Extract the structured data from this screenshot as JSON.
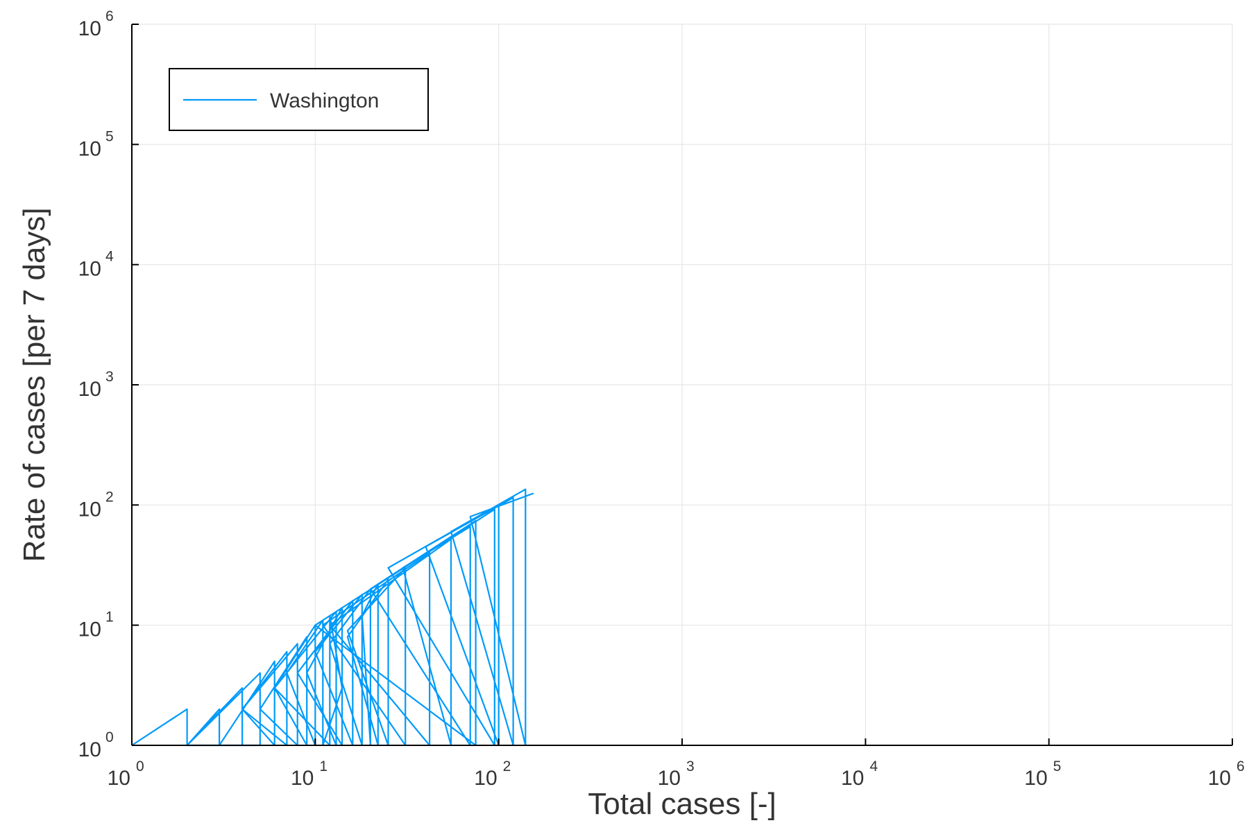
{
  "chart_data": {
    "type": "line",
    "xlabel": "Total cases [-]",
    "ylabel": "Rate of cases [per 7 days]",
    "xscale": "log10",
    "yscale": "log10",
    "xlim": [
      1,
      1000000
    ],
    "ylim": [
      1,
      1000000
    ],
    "grid": true,
    "legend_position": "top-left",
    "x_ticks": [
      {
        "base": "10",
        "exp": "0",
        "value": 1
      },
      {
        "base": "10",
        "exp": "1",
        "value": 10
      },
      {
        "base": "10",
        "exp": "2",
        "value": 100
      },
      {
        "base": "10",
        "exp": "3",
        "value": 1000
      },
      {
        "base": "10",
        "exp": "4",
        "value": 10000
      },
      {
        "base": "10",
        "exp": "5",
        "value": 100000
      },
      {
        "base": "10",
        "exp": "6",
        "value": 1000000
      }
    ],
    "y_ticks": [
      {
        "base": "10",
        "exp": "0",
        "value": 1
      },
      {
        "base": "10",
        "exp": "1",
        "value": 10
      },
      {
        "base": "10",
        "exp": "2",
        "value": 100
      },
      {
        "base": "10",
        "exp": "3",
        "value": 1000
      },
      {
        "base": "10",
        "exp": "4",
        "value": 10000
      },
      {
        "base": "10",
        "exp": "5",
        "value": 100000
      },
      {
        "base": "10",
        "exp": "6",
        "value": 1000000
      }
    ],
    "series": [
      {
        "name": "Washington",
        "color": "#009af9",
        "x": [
          1,
          2,
          2,
          3,
          3,
          2,
          4,
          4,
          2,
          5,
          5,
          3,
          6,
          6,
          4,
          7,
          7,
          4,
          8,
          8,
          5,
          9,
          9,
          6,
          10,
          10,
          7,
          11,
          11,
          14,
          12,
          12,
          6,
          13,
          13,
          9,
          14,
          14,
          8,
          16,
          16,
          10,
          18,
          18,
          12,
          20,
          20,
          18,
          22,
          22,
          15,
          25,
          25,
          15,
          31,
          31,
          11,
          42,
          42,
          12,
          55,
          55,
          30,
          70,
          70,
          20,
          75,
          75,
          10,
          95,
          95,
          25,
          100,
          100,
          40,
          120,
          120,
          55,
          140,
          140,
          70,
          155
        ],
        "y": [
          1,
          2,
          1,
          2,
          1,
          1,
          3,
          1,
          1,
          4,
          1,
          1,
          5,
          1,
          2,
          6,
          1,
          2,
          7,
          1,
          2,
          8,
          1,
          3,
          10,
          1,
          4,
          11,
          1,
          3,
          12,
          1,
          3,
          13,
          1,
          4,
          14,
          1,
          4,
          16,
          1,
          6,
          18,
          1,
          7,
          20,
          1,
          12,
          22,
          1,
          8,
          24,
          1,
          9,
          30,
          1,
          10,
          40,
          1,
          10,
          52,
          1,
          30,
          66,
          1,
          20,
          74,
          1,
          10,
          92,
          1,
          30,
          100,
          1,
          45,
          115,
          1,
          60,
          135,
          1,
          80,
          125
        ]
      }
    ]
  }
}
